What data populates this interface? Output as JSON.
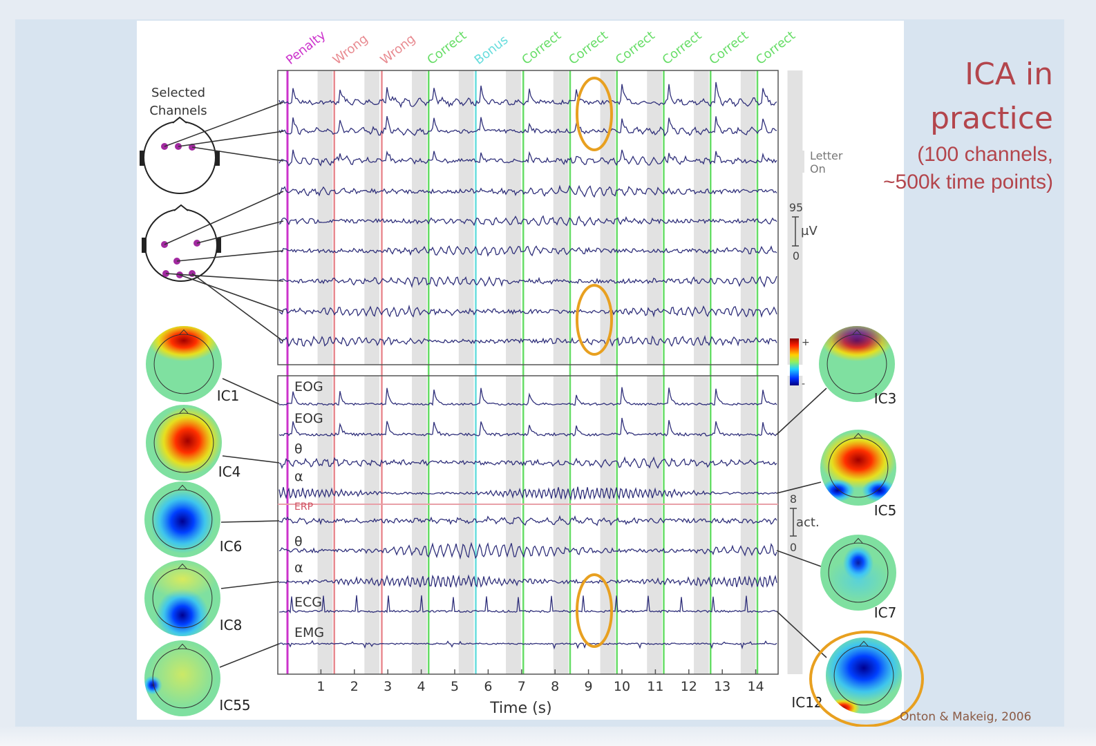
{
  "title": {
    "line1": "ICA in",
    "line2": "practice",
    "sub1": "(100 channels,",
    "sub2": "~500k time points)"
  },
  "citation": "Onton & Makeig, 2006",
  "colors": {
    "title": "#b3454c",
    "trace": "#2f2f7a",
    "penalty": "#cc33cc",
    "wrong": "#e88a90",
    "correct": "#66dd66",
    "bonus": "#66dddd",
    "highlight": "#e8a020",
    "erp_line": "#e8a0a8",
    "letter_on": "#e2e2e2"
  },
  "events": [
    {
      "label": "Penalty",
      "type": "penalty",
      "t": 0.0
    },
    {
      "label": "Wrong",
      "type": "wrong",
      "t": 1.4
    },
    {
      "label": "Wrong",
      "type": "wrong",
      "t": 2.82
    },
    {
      "label": "Correct",
      "type": "correct",
      "t": 4.22
    },
    {
      "label": "Bonus",
      "type": "bonus",
      "t": 5.63
    },
    {
      "label": "Correct",
      "type": "correct",
      "t": 7.05
    },
    {
      "label": "Correct",
      "type": "correct",
      "t": 8.45
    },
    {
      "label": "Correct",
      "type": "correct",
      "t": 9.85
    },
    {
      "label": "Correct",
      "type": "correct",
      "t": 11.25
    },
    {
      "label": "Correct",
      "type": "correct",
      "t": 12.65
    },
    {
      "label": "Correct",
      "type": "correct",
      "t": 14.05
    }
  ],
  "letter_on_offset": 0.9,
  "letter_on_duration": 0.45,
  "selected_channels_label": "Selected\nChannels",
  "letter_on_label": "Letter\nOn",
  "eeg_scale": {
    "top": "95",
    "unit": "µV",
    "bottom": "0"
  },
  "act_scale": {
    "top": "8",
    "unit": "act.",
    "bottom": "0"
  },
  "colorbar": {
    "plus": "+",
    "minus": "-"
  },
  "component_rows": [
    "EOG",
    "EOG",
    "θ",
    "α",
    "ERP",
    "θ",
    "α",
    "ECG",
    "EMG"
  ],
  "left_components": [
    "IC1",
    "IC4",
    "IC6",
    "IC8",
    "IC55"
  ],
  "right_components": [
    "IC3",
    "IC5",
    "IC7",
    "IC12"
  ],
  "x_ticks": [
    "1",
    "2",
    "3",
    "4",
    "5",
    "6",
    "7",
    "8",
    "9",
    "10",
    "11",
    "12",
    "13",
    "14"
  ],
  "xlabel": "Time (s)"
}
